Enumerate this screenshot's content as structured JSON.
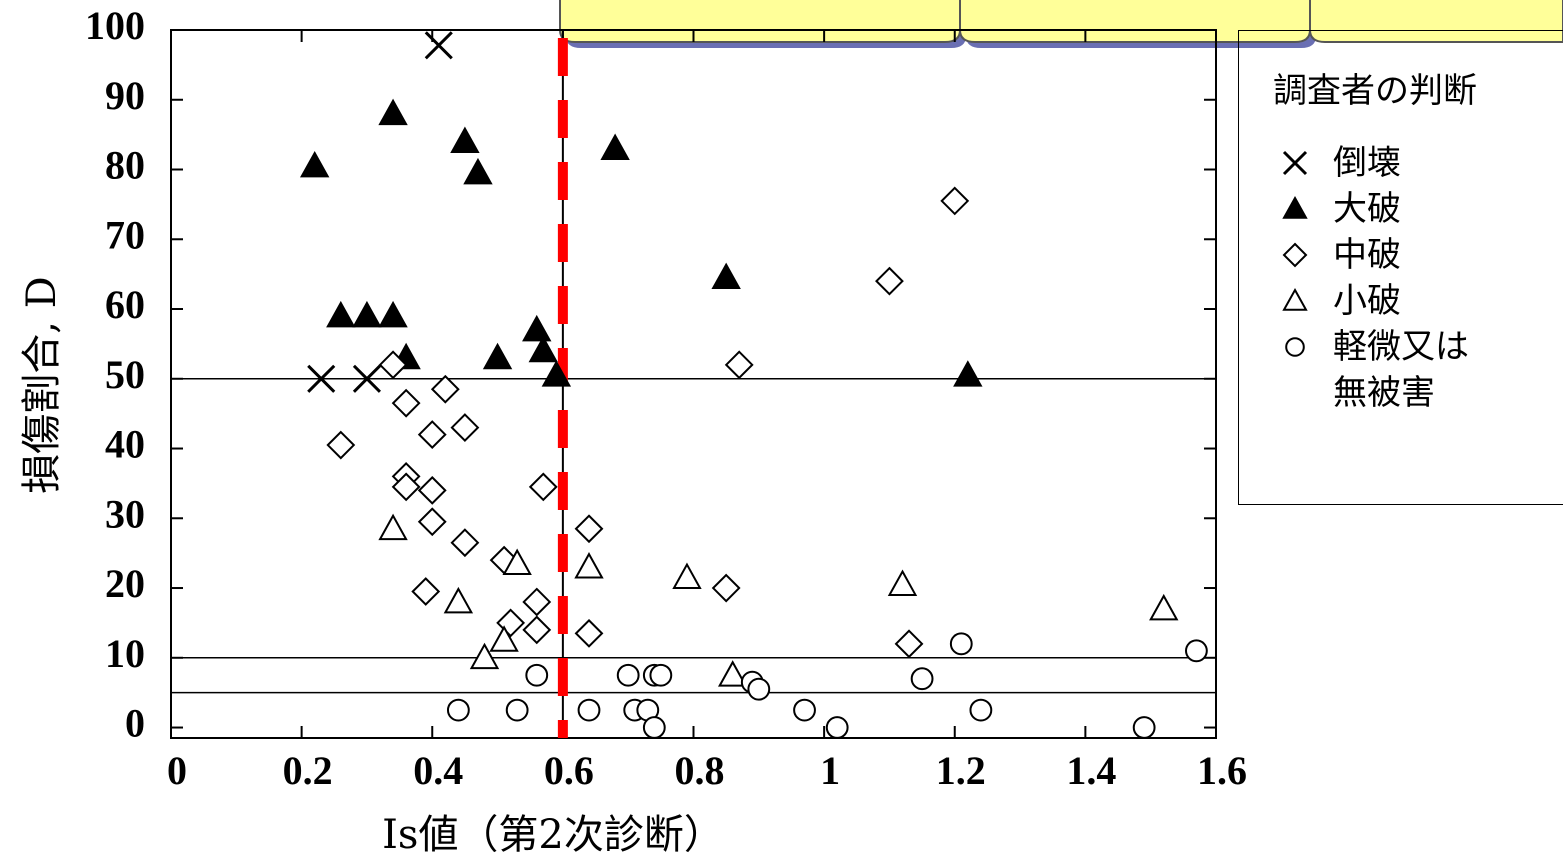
{
  "chart_data": {
    "type": "scatter",
    "xlabel": "Is値（第2次診断）",
    "ylabel": "損傷割合, D",
    "legend_title": "調査者の判断",
    "xlim": [
      0,
      1.6
    ],
    "ylim": [
      -1.5,
      100
    ],
    "xticks": [
      0,
      0.2,
      0.4,
      0.6,
      0.8,
      1,
      1.2,
      1.4,
      1.6
    ],
    "yticks": [
      0,
      10,
      20,
      30,
      40,
      50,
      60,
      70,
      80,
      90,
      100
    ],
    "hlines": [
      50,
      10,
      5
    ],
    "threshold_x": 0.6,
    "threshold_color": "#ff0000",
    "series": [
      {
        "name": "倒壊",
        "marker": "x",
        "x": [
          0.41,
          0.23,
          0.3
        ],
        "values": [
          97.8,
          50,
          50
        ]
      },
      {
        "name": "大破",
        "marker": "filled-triangle",
        "x": [
          0.22,
          0.34,
          0.45,
          0.47,
          0.68,
          0.26,
          0.3,
          0.34,
          0.36,
          0.5,
          0.56,
          0.57,
          0.59,
          0.85,
          1.22
        ],
        "values": [
          80.5,
          88,
          84,
          79.5,
          83,
          59,
          59,
          59,
          53,
          53,
          57,
          54,
          50.5,
          64.5,
          50.5
        ]
      },
      {
        "name": "中破",
        "marker": "diamond",
        "x": [
          0.34,
          0.26,
          0.36,
          0.42,
          0.4,
          0.45,
          0.36,
          0.36,
          0.4,
          0.4,
          0.45,
          0.57,
          0.64,
          0.51,
          0.39,
          0.56,
          0.52,
          0.56,
          0.64,
          0.85,
          0.87,
          1.1,
          1.2,
          1.13
        ],
        "values": [
          52,
          40.5,
          46.5,
          48.5,
          42,
          43,
          36,
          34.5,
          34,
          29.5,
          26.5,
          34.5,
          28.5,
          24,
          19.5,
          18,
          15,
          14,
          13.5,
          20,
          52,
          64,
          75.5,
          12
        ]
      },
      {
        "name": "小破",
        "marker": "triangle",
        "x": [
          0.34,
          0.44,
          0.53,
          0.51,
          0.48,
          0.64,
          0.79,
          0.86,
          1.12,
          1.52
        ],
        "values": [
          28.5,
          18,
          23.5,
          12.5,
          10,
          23,
          21.5,
          7.5,
          20.5,
          17
        ]
      },
      {
        "name": "軽微又は無被害",
        "marker": "circle",
        "x": [
          0.44,
          0.53,
          0.56,
          0.64,
          0.7,
          0.71,
          0.73,
          0.74,
          0.74,
          0.75,
          0.89,
          0.9,
          0.97,
          1.02,
          1.15,
          1.21,
          1.24,
          1.49,
          1.57
        ],
        "values": [
          2.5,
          2.5,
          7.5,
          2.5,
          7.5,
          2.5,
          2.5,
          0,
          7.5,
          7.5,
          6.5,
          5.5,
          2.5,
          0,
          7,
          12,
          2.5,
          0,
          11
        ]
      }
    ]
  }
}
